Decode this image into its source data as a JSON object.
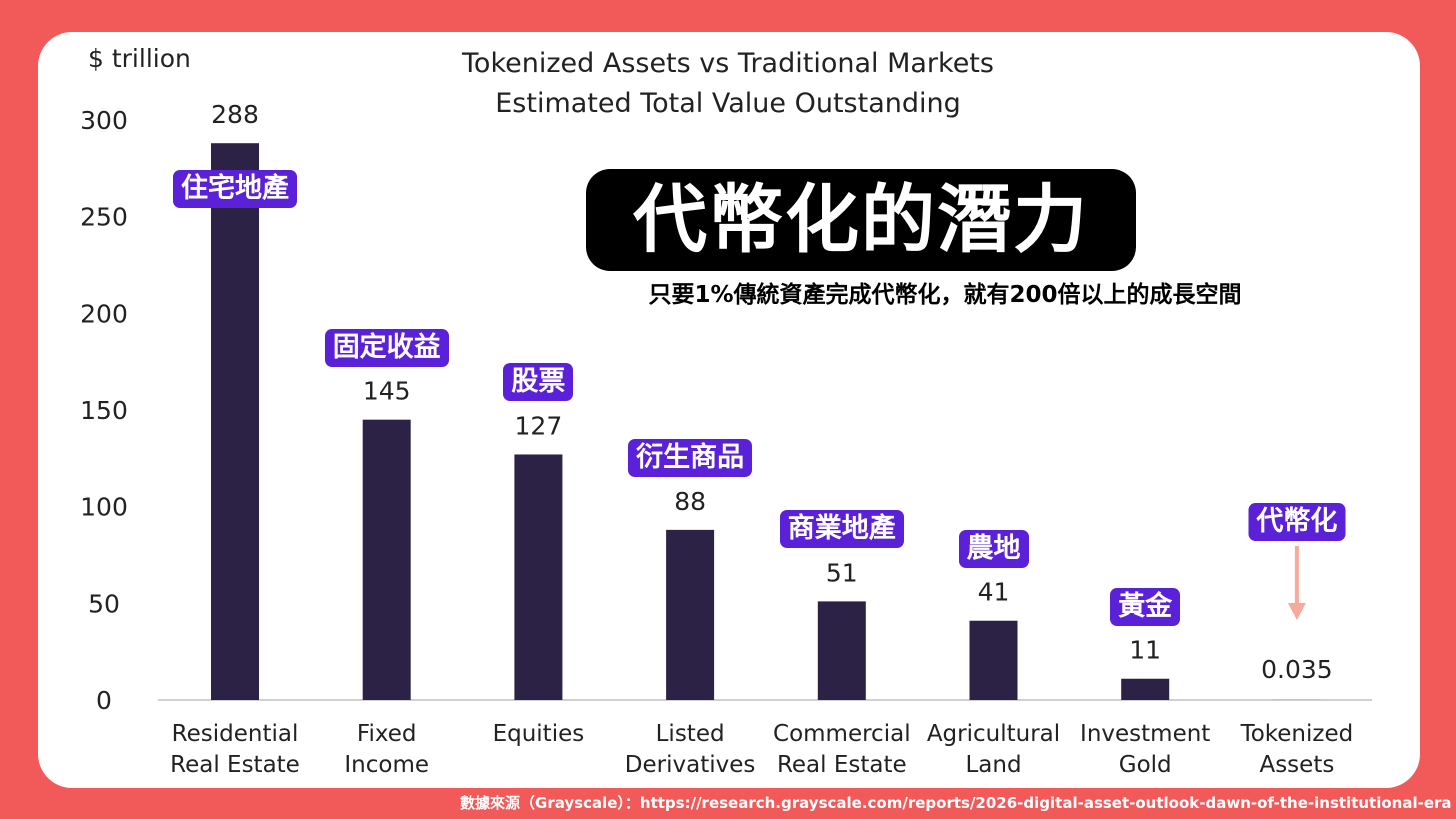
{
  "unit_label": "$ trillion",
  "headline": "代幣化的潛力",
  "subheadline": "只要1%傳統資產完成代幣化，就有200倍以上的成長空間",
  "source_note": "數據來源（Grayscale）：https://research.grayscale.com/reports/2026-digital-asset-outlook-dawn-of-the-institutional-era",
  "colors": {
    "background": "#f25a5a",
    "bar": "#2b2245",
    "tag": "#5b21d8",
    "arrow": "#f7a99a"
  },
  "chart_data": {
    "type": "bar",
    "title": "Tokenized Assets vs Traditional Markets",
    "subtitle": "Estimated Total Value Outstanding",
    "ylabel": "$ trillion",
    "ylim": [
      0,
      300
    ],
    "yticks": [
      0,
      50,
      100,
      150,
      200,
      250,
      300
    ],
    "grid": false,
    "categories": [
      [
        "Residential",
        "Real Estate"
      ],
      [
        "Fixed",
        "Income"
      ],
      [
        "Equities"
      ],
      [
        "Listed",
        "Derivatives"
      ],
      [
        "Commercial",
        "Real Estate"
      ],
      [
        "Agricultural",
        "Land"
      ],
      [
        "Investment",
        "Gold"
      ],
      [
        "Tokenized",
        "Assets"
      ]
    ],
    "values": [
      288,
      145,
      127,
      88,
      51,
      41,
      11,
      0.035
    ],
    "value_labels": [
      "288",
      "145",
      "127",
      "88",
      "51",
      "41",
      "11",
      "0.035"
    ],
    "annotations": [
      "住宅地產",
      "固定收益",
      "股票",
      "衍生商品",
      "商業地產",
      "農地",
      "黃金",
      "代幣化"
    ]
  }
}
